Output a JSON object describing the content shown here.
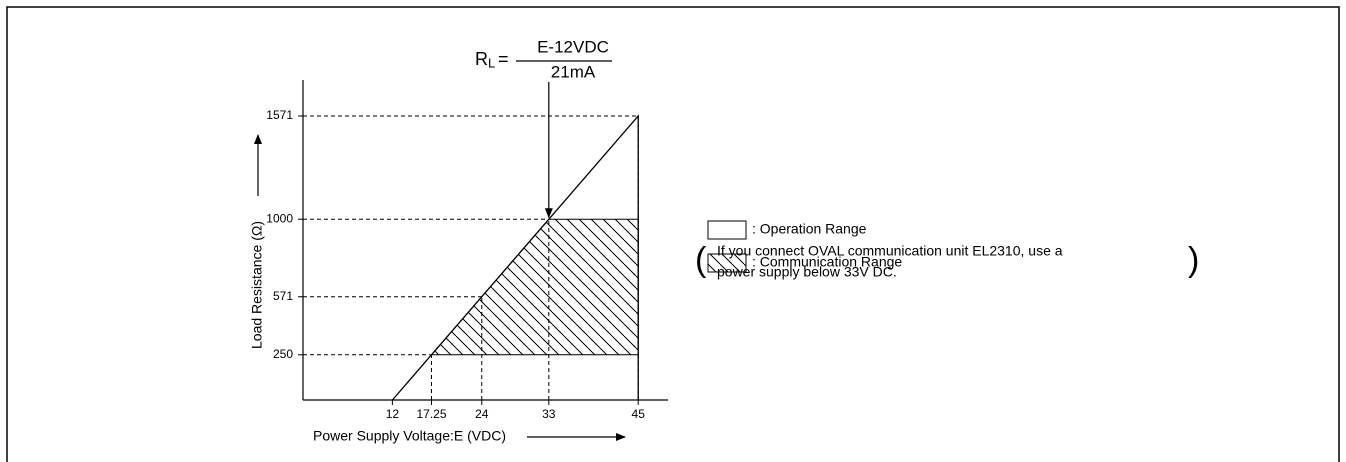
{
  "chart_data": {
    "type": "line",
    "xlabel": "Power Supply Voltage:E (VDC)",
    "ylabel": "Load Resistance (Ω)",
    "xlim": [
      0,
      49
    ],
    "ylim": [
      0,
      1770
    ],
    "xticks": [
      12,
      17.25,
      24,
      33,
      45
    ],
    "yticks": [
      250,
      571,
      1000,
      1571
    ],
    "series": [
      {
        "name": ": Operation Range",
        "color": "#000000",
        "x": [
          12,
          45,
          45
        ],
        "values": [
          0,
          1571,
          0
        ]
      }
    ],
    "regions": [
      {
        "name": ": Communication Range",
        "color": "#000000",
        "x": [
          17.25,
          33,
          45,
          45
        ],
        "values": [
          250,
          1000,
          1000,
          250
        ]
      }
    ],
    "annotation": {
      "symbol": "R",
      "subscript": "L",
      "relation": "=",
      "numerator": "E-12VDC",
      "denominator": "21mA",
      "x": 33,
      "y": 1000
    },
    "note": [
      "If you connect OVAL communication unit EL2310, use a",
      "power supply below 33V DC."
    ]
  }
}
